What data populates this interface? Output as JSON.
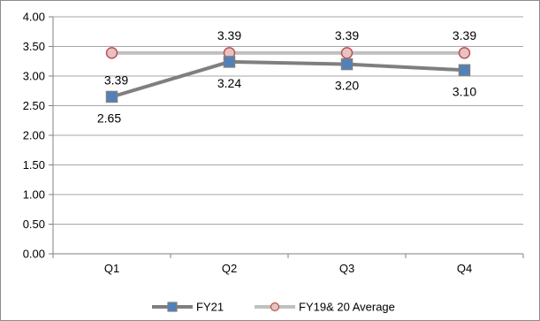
{
  "chart_data": {
    "type": "line",
    "categories": [
      "Q1",
      "Q2",
      "Q3",
      "Q4"
    ],
    "ylim": [
      0,
      4
    ],
    "ytick_step": 0.5,
    "yticks": [
      "0.00",
      "0.50",
      "1.00",
      "1.50",
      "2.00",
      "2.50",
      "3.00",
      "3.50",
      "4.00"
    ],
    "grid": true,
    "legend_position": "bottom",
    "series": [
      {
        "name": "FY21",
        "values": [
          2.65,
          3.24,
          3.2,
          3.1
        ],
        "labels": [
          "2.65",
          "3.24",
          "3.20",
          "3.10"
        ],
        "line_color": "#7f7f7f",
        "marker": "square",
        "marker_fill": "#4f81bd",
        "marker_stroke": "#7f7f7f"
      },
      {
        "name": "FY19& 20 Average",
        "values": [
          3.39,
          3.39,
          3.39,
          3.39
        ],
        "labels": [
          "3.39",
          "3.39",
          "3.39",
          "3.39"
        ],
        "line_color": "#c0c0c0",
        "marker": "circle",
        "marker_fill": "#e6c3c3",
        "marker_stroke": "#c0504d"
      }
    ]
  }
}
